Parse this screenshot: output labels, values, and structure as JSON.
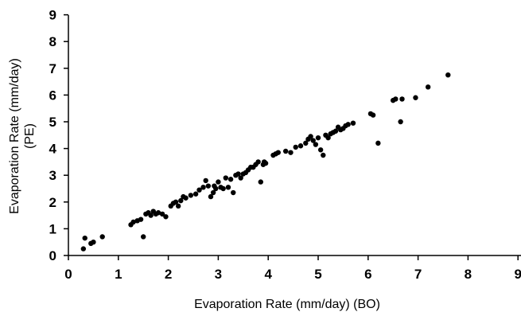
{
  "chart_data": {
    "type": "scatter",
    "title": "",
    "xlabel": "Evaporation Rate (mm/day) (BO)",
    "ylabel_line1": "Evaporation Rate (mm/day)",
    "ylabel_line2": "(PE)",
    "xlim": [
      0,
      9
    ],
    "ylim": [
      0,
      9
    ],
    "xticks": [
      "0",
      "1",
      "2",
      "3",
      "4",
      "5",
      "6",
      "7",
      "8",
      "9"
    ],
    "yticks": [
      "0",
      "1",
      "2",
      "3",
      "4",
      "5",
      "6",
      "7",
      "8",
      "9"
    ],
    "grid": false,
    "legend": "none",
    "marker_color": "#000000",
    "series": [
      {
        "x": [
          0.3,
          0.33,
          0.45,
          0.5,
          0.68,
          1.25,
          1.3,
          1.38,
          1.45,
          1.5,
          1.55,
          1.6,
          1.65,
          1.7,
          1.75,
          1.8,
          1.88,
          1.95,
          2.05,
          2.1,
          2.15,
          2.2,
          2.25,
          2.3,
          2.35,
          2.45,
          2.55,
          2.62,
          2.7,
          2.75,
          2.8,
          2.85,
          2.9,
          2.92,
          2.95,
          3.0,
          3.05,
          3.1,
          3.15,
          3.2,
          3.25,
          3.3,
          3.35,
          3.4,
          3.45,
          3.5,
          3.55,
          3.6,
          3.65,
          3.7,
          3.75,
          3.8,
          3.85,
          3.9,
          3.92,
          3.95,
          4.1,
          4.15,
          4.2,
          4.35,
          4.45,
          4.55,
          4.65,
          4.75,
          4.8,
          4.85,
          4.9,
          4.95,
          5.0,
          5.05,
          5.1,
          5.15,
          5.2,
          5.25,
          5.3,
          5.35,
          5.4,
          5.45,
          5.5,
          5.55,
          5.6,
          5.7,
          6.05,
          6.1,
          6.2,
          6.5,
          6.55,
          6.65,
          6.68,
          6.95,
          7.2,
          7.6
        ],
        "y": [
          0.25,
          0.65,
          0.45,
          0.5,
          0.7,
          1.15,
          1.25,
          1.3,
          1.35,
          0.7,
          1.55,
          1.6,
          1.5,
          1.65,
          1.55,
          1.6,
          1.55,
          1.45,
          1.85,
          1.95,
          2.0,
          1.85,
          2.05,
          2.2,
          2.15,
          2.25,
          2.3,
          2.45,
          2.55,
          2.8,
          2.6,
          2.2,
          2.35,
          2.6,
          2.5,
          2.75,
          2.55,
          2.5,
          2.9,
          2.55,
          2.85,
          2.35,
          3.0,
          3.05,
          2.9,
          3.05,
          3.1,
          3.2,
          3.3,
          3.3,
          3.4,
          3.5,
          2.75,
          3.4,
          3.5,
          3.45,
          3.75,
          3.8,
          3.85,
          3.9,
          3.85,
          4.05,
          4.1,
          4.2,
          4.35,
          4.45,
          4.3,
          4.15,
          4.4,
          3.95,
          3.75,
          4.5,
          4.4,
          4.55,
          4.6,
          4.65,
          4.8,
          4.7,
          4.75,
          4.85,
          4.9,
          4.95,
          5.3,
          5.25,
          4.2,
          5.8,
          5.85,
          5.0,
          5.85,
          5.9,
          6.3,
          6.75
        ]
      }
    ]
  }
}
